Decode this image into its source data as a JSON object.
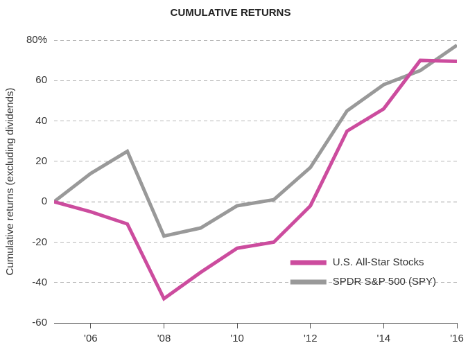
{
  "chart_data": {
    "type": "line",
    "title": "CUMULATIVE RETURNS",
    "ylabel": "Cumulative returns (excluding dividends)",
    "x": [
      2005,
      2006,
      2007,
      2008,
      2009,
      2010,
      2011,
      2012,
      2013,
      2014,
      2015,
      2016
    ],
    "series": [
      {
        "name": "U.S. All-Star Stocks",
        "color": "#cc4c9e",
        "values": [
          0,
          -5,
          -11,
          -48,
          -35,
          -23,
          -20,
          -2,
          35,
          46,
          70,
          69.5
        ]
      },
      {
        "name": "SPDR S&P 500 (SPY)",
        "color": "#999999",
        "values": [
          0,
          14,
          25,
          -17,
          -13,
          -2,
          1,
          17,
          45,
          58,
          65,
          77.5
        ]
      }
    ],
    "xlim": [
      2005,
      2016
    ],
    "xticks": [
      {
        "value": 2006,
        "label": "'06"
      },
      {
        "value": 2008,
        "label": "'08"
      },
      {
        "value": 2010,
        "label": "'10"
      },
      {
        "value": 2012,
        "label": "'12"
      },
      {
        "value": 2014,
        "label": "'14"
      },
      {
        "value": 2016,
        "label": "'16"
      }
    ],
    "ylim": [
      -60,
      80
    ],
    "yticks": [
      -60,
      -40,
      -20,
      0,
      20,
      40,
      60,
      {
        "value": 80,
        "label": "80%"
      }
    ],
    "grid": true,
    "legend": "lower right"
  }
}
